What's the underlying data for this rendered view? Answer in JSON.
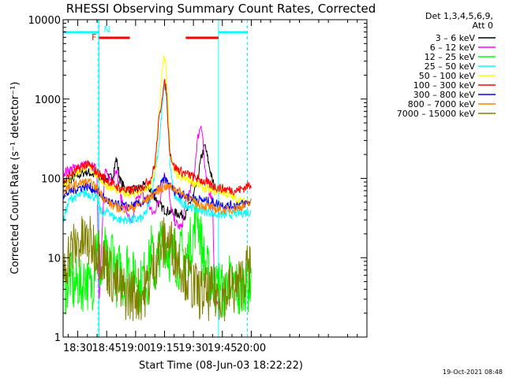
{
  "chart_data": {
    "type": "line",
    "title": "RHESSI Observing Summary Count Rates, Corrected",
    "xlabel": "Start Time (08-Jun-03 18:22:22)",
    "ylabel": "Corrected Count Rate (s⁻¹ detector⁻¹)",
    "yscale": "log",
    "ylim": [
      1,
      10000
    ],
    "xlim_min": [
      22.4,
      180
    ],
    "x_ticks": [
      {
        "label": "18:30",
        "t": 30
      },
      {
        "label": "18:45",
        "t": 45
      },
      {
        "label": "19:00",
        "t": 60
      },
      {
        "label": "19:15",
        "t": 75
      },
      {
        "label": "19:30",
        "t": 90
      },
      {
        "label": "19:45",
        "t": 105
      },
      {
        "label": "20:00",
        "t": 120
      }
    ],
    "y_ticks": [
      {
        "label": "1",
        "v": 1
      },
      {
        "label": "10",
        "v": 10
      },
      {
        "label": "100",
        "v": 100
      },
      {
        "label": "1000",
        "v": 1000
      },
      {
        "label": "10000",
        "v": 10000
      }
    ],
    "legend_header": [
      "Det 1,3,4,5,6,9,",
      "Att 0"
    ],
    "series": [
      {
        "name": "3 - 6 keV",
        "label": "3 – 6 keV",
        "color": "#000000",
        "t": [
          22.4,
          26,
          30,
          34,
          37,
          40,
          44,
          48,
          50,
          52,
          55,
          60,
          64,
          68,
          70,
          72,
          75,
          78,
          82,
          86,
          88,
          90,
          92,
          94,
          96,
          98,
          100,
          101
        ],
        "v": [
          82,
          95,
          108,
          122,
          115,
          105,
          95,
          105,
          180,
          95,
          70,
          72,
          80,
          72,
          58,
          48,
          40,
          38,
          36,
          34,
          48,
          60,
          90,
          180,
          260,
          150,
          90,
          80
        ]
      },
      {
        "name": "6 - 12 keV",
        "label": "6 – 12 keV",
        "color": "#ff00ff",
        "t": [
          22.4,
          26,
          30,
          34,
          37,
          40,
          41,
          44,
          48,
          50,
          52,
          55,
          58,
          60,
          62,
          64,
          67,
          69,
          71,
          73,
          74,
          75,
          76,
          77,
          78,
          80,
          82,
          84,
          86,
          88,
          90,
          92,
          94,
          95,
          96,
          98,
          100,
          101,
          102,
          104
        ],
        "v": [
          118,
          130,
          140,
          150,
          140,
          130,
          2.5,
          120,
          90,
          140,
          60,
          40,
          25,
          50,
          65,
          60,
          45,
          35,
          45,
          60,
          95,
          110,
          105,
          80,
          45,
          30,
          25,
          24,
          50,
          70,
          90,
          300,
          500,
          300,
          120,
          70,
          55,
          2.5,
          2.5,
          2.5
        ]
      },
      {
        "name": "12 - 25 keV",
        "label": "12 – 25 keV",
        "color": "#00ff00",
        "t": [
          22.4,
          24,
          26,
          28,
          30,
          32,
          34,
          36,
          38,
          40,
          42,
          44,
          46,
          48,
          50,
          52,
          54,
          56,
          58,
          60,
          62,
          64,
          66,
          68,
          70,
          72,
          74,
          75,
          76,
          78,
          80,
          82,
          84,
          86,
          88,
          90,
          92,
          94,
          96,
          98,
          100,
          102,
          104,
          106,
          108,
          110,
          112,
          114,
          116,
          118,
          120
        ],
        "v": [
          5,
          4,
          6,
          4,
          5,
          4,
          6,
          4,
          5,
          20,
          5,
          12,
          6,
          15,
          5,
          8,
          4,
          10,
          5,
          7,
          4,
          6,
          5,
          14,
          6,
          12,
          16,
          18,
          14,
          10,
          12,
          8,
          12,
          8,
          14,
          20,
          40,
          16,
          8,
          6,
          5,
          4,
          5,
          3,
          6,
          4,
          5,
          3,
          5,
          4,
          6
        ]
      },
      {
        "name": "25 - 50 keV",
        "label": "25 – 50 keV",
        "color": "#00ffff",
        "t": [
          22.4,
          24,
          26,
          30,
          34,
          37,
          40,
          42,
          44,
          46,
          48,
          52,
          56,
          60,
          64,
          66,
          68,
          70,
          72,
          74,
          75,
          76,
          77,
          78,
          80,
          84,
          88,
          90,
          94,
          96,
          98,
          100,
          104,
          108,
          112,
          116,
          120
        ],
        "v": [
          28,
          40,
          55,
          60,
          65,
          62,
          55,
          38,
          35,
          40,
          33,
          30,
          30,
          30,
          32,
          40,
          60,
          120,
          250,
          900,
          1500,
          1100,
          400,
          130,
          60,
          48,
          45,
          42,
          40,
          38,
          38,
          36,
          35,
          35,
          36,
          37,
          38
        ]
      },
      {
        "name": "50 - 100 keV",
        "label": "50 – 100 keV",
        "color": "#ffff00",
        "t": [
          22.4,
          26,
          30,
          34,
          37,
          40,
          44,
          48,
          52,
          56,
          60,
          64,
          68,
          70,
          72,
          74,
          75,
          76,
          77,
          78,
          80,
          84,
          88,
          92,
          96,
          100,
          104,
          108,
          112,
          116,
          120
        ],
        "v": [
          85,
          100,
          120,
          140,
          130,
          110,
          85,
          75,
          68,
          65,
          65,
          70,
          80,
          120,
          600,
          2500,
          3500,
          2200,
          700,
          200,
          120,
          100,
          95,
          85,
          75,
          70,
          70,
          62,
          55,
          50,
          52
        ]
      },
      {
        "name": "100 - 300 keV",
        "label": "100 – 300 keV",
        "color": "#ff0000",
        "t": [
          22.4,
          26,
          30,
          34,
          37,
          40,
          44,
          48,
          52,
          56,
          60,
          64,
          68,
          70,
          72,
          74,
          75,
          76,
          77,
          78,
          80,
          84,
          88,
          92,
          96,
          100,
          104,
          108,
          112,
          116,
          120
        ],
        "v": [
          90,
          110,
          130,
          150,
          140,
          120,
          100,
          85,
          75,
          70,
          72,
          80,
          100,
          150,
          500,
          1200,
          1600,
          1300,
          400,
          200,
          140,
          120,
          110,
          100,
          90,
          80,
          75,
          72,
          70,
          75,
          85
        ]
      },
      {
        "name": "300 - 800 keV",
        "label": "300 – 800 keV",
        "color": "#0000ff",
        "t": [
          22.4,
          26,
          30,
          34,
          37,
          40,
          44,
          48,
          52,
          56,
          60,
          64,
          68,
          70,
          72,
          74,
          75,
          76,
          78,
          80,
          84,
          88,
          92,
          96,
          100,
          104,
          108,
          112,
          116,
          120
        ],
        "v": [
          60,
          68,
          75,
          80,
          76,
          70,
          55,
          48,
          45,
          44,
          46,
          50,
          58,
          65,
          75,
          90,
          100,
          92,
          80,
          70,
          62,
          58,
          55,
          52,
          50,
          47,
          45,
          46,
          48,
          50
        ]
      },
      {
        "name": "800 - 7000 keV",
        "label": "800 – 7000 keV",
        "color": "#ff8000",
        "t": [
          22.4,
          26,
          30,
          34,
          37,
          40,
          44,
          48,
          52,
          56,
          60,
          64,
          68,
          72,
          76,
          80,
          84,
          88,
          92,
          96,
          100,
          104,
          108,
          112,
          116,
          120
        ],
        "v": [
          70,
          78,
          85,
          90,
          86,
          75,
          55,
          45,
          42,
          42,
          44,
          50,
          60,
          72,
          80,
          75,
          65,
          55,
          48,
          45,
          42,
          40,
          40,
          42,
          45,
          50
        ]
      },
      {
        "name": "7000 - 15000 keV",
        "label": "7000 – 15000 keV",
        "color": "#808000",
        "t": [
          22.4,
          26,
          30,
          34,
          37,
          40,
          43,
          46,
          49,
          52,
          55,
          58,
          61,
          64,
          67,
          70,
          73,
          76,
          79,
          82,
          85,
          88,
          91,
          94,
          97,
          100,
          103,
          106,
          109,
          112,
          115,
          118,
          120
        ],
        "v": [
          7,
          12,
          15,
          16,
          15,
          13,
          10,
          7,
          5,
          4,
          3.5,
          3.5,
          3.5,
          3.5,
          5,
          9,
          14,
          16,
          14,
          10,
          7,
          5,
          4,
          3.5,
          3.5,
          3.5,
          3.5,
          3.5,
          4,
          4,
          5,
          7,
          8
        ]
      }
    ],
    "flag_markers": [
      {
        "label": "N",
        "color": "#00ffff"
      },
      {
        "label": "F",
        "color": "#ff0000"
      }
    ],
    "night_intervals": [
      [
        22.4,
        41
      ],
      [
        103,
        118
      ]
    ],
    "flare_intervals": [
      [
        41,
        57
      ],
      [
        86,
        103
      ]
    ],
    "vertical_markers": [
      {
        "t": 41,
        "color": "#00ffff",
        "style": "solid"
      },
      {
        "t": 103,
        "color": "#00ffff",
        "style": "solid"
      },
      {
        "t": 40.5,
        "color": "#00ffff",
        "style": "dashed"
      },
      {
        "t": 118,
        "color": "#00ffff",
        "style": "dashed"
      }
    ],
    "timestamp": "19-Oct-2021 08:48"
  }
}
